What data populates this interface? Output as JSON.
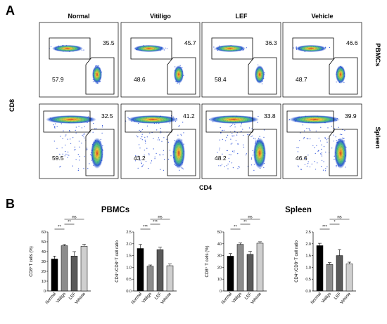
{
  "panel_a": {
    "letter": "A",
    "columns": [
      "Normal",
      "Vitiligo",
      "LEF",
      "Vehicle"
    ],
    "rows": [
      "PBMCs",
      "Spleen"
    ],
    "x_axis_label": "CD4",
    "y_axis_label": "CD8",
    "gates": {
      "PBMCs": [
        {
          "cd8": "35.5",
          "cd4": "57.9"
        },
        {
          "cd8": "45.7",
          "cd4": "48.6"
        },
        {
          "cd8": "36.3",
          "cd4": "58.4"
        },
        {
          "cd8": "46.6",
          "cd4": "48.7"
        }
      ],
      "Spleen": [
        {
          "cd8": "32.5",
          "cd4": "59.5"
        },
        {
          "cd8": "41.2",
          "cd4": "43.2"
        },
        {
          "cd8": "33.8",
          "cd4": "48.2"
        },
        {
          "cd8": "39.9",
          "cd4": "46.6"
        }
      ]
    }
  },
  "panel_b": {
    "letter": "B",
    "group_titles": [
      "PBMCs",
      "Spleen"
    ]
  },
  "chart_data": [
    {
      "type": "bar",
      "group": "PBMCs",
      "categories": [
        "Normal",
        "Vitiligo",
        "LEF",
        "Vehicle"
      ],
      "values": [
        32.5,
        46.0,
        35.5,
        45.5
      ],
      "errors": [
        3.0,
        1.2,
        4.5,
        2.0
      ],
      "colors": [
        "#000000",
        "#8c8c8c",
        "#5a5a5a",
        "#cfcfcf"
      ],
      "ylabel": "CD8⁺T cells (%)",
      "ylim": [
        0,
        60
      ],
      "yticks": [
        "0",
        "10",
        "20",
        "30",
        "40",
        "50",
        "60"
      ],
      "significance": [
        {
          "from": 0,
          "to": 1,
          "label": "**"
        },
        {
          "from": 1,
          "to": 2,
          "label": "**"
        },
        {
          "from": 1,
          "to": 3,
          "label": "ns"
        }
      ]
    },
    {
      "type": "bar",
      "group": "PBMCs",
      "categories": [
        "Normal",
        "Vitiligo",
        "LEF",
        "Vehicle"
      ],
      "values": [
        1.8,
        1.05,
        1.75,
        1.07
      ],
      "errors": [
        0.17,
        0.05,
        0.1,
        0.07
      ],
      "colors": [
        "#000000",
        "#8c8c8c",
        "#5a5a5a",
        "#cfcfcf"
      ],
      "ylabel": "CD4⁺/CD8⁺T cell ratio",
      "ylim": [
        0,
        2.5
      ],
      "yticks": [
        "0.0",
        "0.5",
        "1.0",
        "1.5",
        "2.0",
        "2.5"
      ],
      "significance": [
        {
          "from": 0,
          "to": 1,
          "label": "***"
        },
        {
          "from": 1,
          "to": 2,
          "label": "***"
        },
        {
          "from": 1,
          "to": 3,
          "label": "ns"
        }
      ]
    },
    {
      "type": "bar",
      "group": "Spleen",
      "categories": [
        "Normal",
        "Vitiligo",
        "LEF",
        "Vehicle"
      ],
      "values": [
        29.5,
        39.5,
        31.0,
        40.5
      ],
      "errors": [
        2.2,
        1.1,
        2.5,
        1.2
      ],
      "colors": [
        "#000000",
        "#8c8c8c",
        "#5a5a5a",
        "#cfcfcf"
      ],
      "ylabel": "CD8⁺ T cells (%)",
      "ylim": [
        0,
        50
      ],
      "yticks": [
        "0",
        "10",
        "20",
        "30",
        "40",
        "50"
      ],
      "significance": [
        {
          "from": 0,
          "to": 1,
          "label": "**"
        },
        {
          "from": 1,
          "to": 2,
          "label": "**"
        },
        {
          "from": 1,
          "to": 3,
          "label": "ns"
        }
      ]
    },
    {
      "type": "bar",
      "group": "Spleen",
      "categories": [
        "Normal",
        "Vitiligo",
        "LEF",
        "Vehicle"
      ],
      "values": [
        1.92,
        1.12,
        1.5,
        1.15
      ],
      "errors": [
        0.1,
        0.08,
        0.25,
        0.07
      ],
      "colors": [
        "#000000",
        "#8c8c8c",
        "#5a5a5a",
        "#cfcfcf"
      ],
      "ylabel": "CD4⁺/CD8⁺T cell ratio",
      "ylim": [
        0,
        2.5
      ],
      "yticks": [
        "0.0",
        "0.5",
        "1.0",
        "1.5",
        "2.0",
        "2.5"
      ],
      "significance": [
        {
          "from": 0,
          "to": 1,
          "label": "***"
        },
        {
          "from": 1,
          "to": 2,
          "label": "*"
        },
        {
          "from": 1,
          "to": 3,
          "label": "ns"
        }
      ]
    }
  ]
}
